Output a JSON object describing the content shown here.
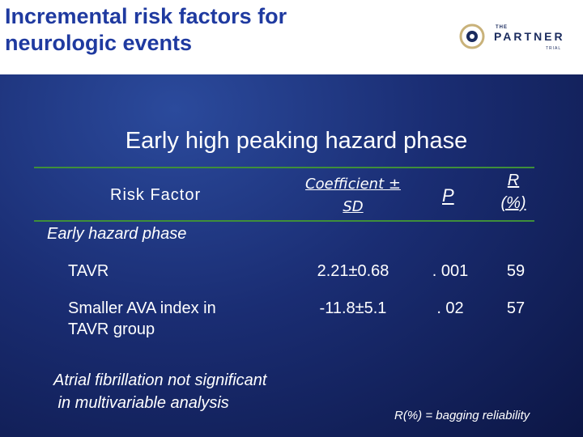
{
  "slide": {
    "title_lines": [
      "Incremental risk factors for",
      "neurologic events"
    ],
    "logo": {
      "prefix": "THE",
      "name": "PARTNER",
      "suffix": "TRIAL"
    },
    "subtitle": "Early high peaking hazard phase",
    "table": {
      "headers": {
        "risk_factor": "Risk Factor",
        "coefficient_lines": [
          "Coefficient ±",
          "SD"
        ],
        "p": "P",
        "r_lines": [
          "R",
          "(%)"
        ]
      },
      "section_label": "Early hazard phase",
      "rows": [
        {
          "name_lines": [
            "TAVR"
          ],
          "coefficient": "2.21±0.68",
          "p": ". 001",
          "r": "59"
        },
        {
          "name_lines": [
            "Smaller AVA index in",
            "TAVR group"
          ],
          "coefficient": "-11.8±5.1",
          "p": ". 02",
          "r": "57"
        }
      ]
    },
    "note_lines": [
      "Atrial fibrillation not significant",
      " in multivariable analysis"
    ],
    "footnote": "R(%) = bagging reliability",
    "colors": {
      "title": "#1f3aa0",
      "background": "#1a2d73",
      "rule": "#3f8f3a",
      "text": "#ffffff"
    },
    "icons": {
      "logo_mark": "partner-logo-icon"
    }
  }
}
